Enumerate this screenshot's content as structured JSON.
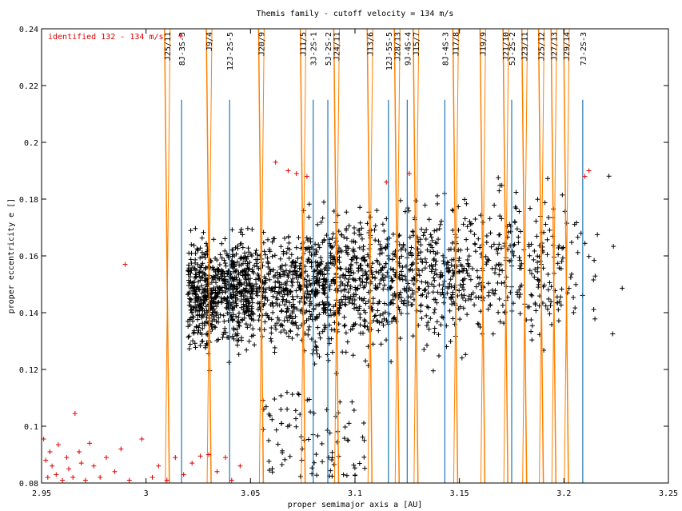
{
  "chart_data": {
    "type": "scatter",
    "title": "Themis family - cutoff velocity = 134 m/s",
    "xlabel": "proper semimajor axis a [AU]",
    "ylabel": "proper eccentricity e []",
    "xlim": [
      2.95,
      3.25
    ],
    "ylim": [
      0.08,
      0.24
    ],
    "xticks": [
      "2.95",
      "3",
      "3.05",
      "3.1",
      "3.15",
      "3.2",
      "3.25"
    ],
    "yticks": [
      "0.08",
      "0.1",
      "0.12",
      "0.14",
      "0.16",
      "0.18",
      "0.2",
      "0.22",
      "0.24"
    ],
    "grid": false,
    "legend": "top-left",
    "colors": {
      "members": "#000000",
      "identified": "#e00000",
      "jupiter_resonance": "#ff8000",
      "three_body_resonance": "#1f77b4"
    },
    "series": [
      {
        "name": "identified 132 - 134 m/s",
        "color": "#e00000"
      }
    ],
    "resonances": [
      {
        "label": "J25/11",
        "a": 3.01,
        "kind": "jupiter"
      },
      {
        "label": "8J-3S-3",
        "a": 3.017,
        "kind": "three-body"
      },
      {
        "label": "J9/4",
        "a": 3.03,
        "kind": "jupiter"
      },
      {
        "label": "12J-2S-5",
        "a": 3.04,
        "kind": "three-body"
      },
      {
        "label": "J20/9",
        "a": 3.055,
        "kind": "jupiter"
      },
      {
        "label": "J11/5",
        "a": 3.075,
        "kind": "jupiter"
      },
      {
        "label": "3J-2S-1",
        "a": 3.08,
        "kind": "three-body"
      },
      {
        "label": "5J-2S-2",
        "a": 3.087,
        "kind": "three-body"
      },
      {
        "label": "J24/11",
        "a": 3.091,
        "kind": "jupiter"
      },
      {
        "label": "J13/6",
        "a": 3.107,
        "kind": "jupiter"
      },
      {
        "label": "12J-5S-5",
        "a": 3.116,
        "kind": "three-body"
      },
      {
        "label": "J28/13",
        "a": 3.12,
        "kind": "jupiter"
      },
      {
        "label": "9J-4S-4",
        "a": 3.125,
        "kind": "three-body"
      },
      {
        "label": "J15/7",
        "a": 3.129,
        "kind": "jupiter"
      },
      {
        "label": "8J-4S-3",
        "a": 3.143,
        "kind": "three-body"
      },
      {
        "label": "J17/8",
        "a": 3.148,
        "kind": "jupiter"
      },
      {
        "label": "J19/9",
        "a": 3.161,
        "kind": "jupiter"
      },
      {
        "label": "J21/10",
        "a": 3.172,
        "kind": "jupiter"
      },
      {
        "label": "5J-2S-2",
        "a": 3.175,
        "kind": "three-body"
      },
      {
        "label": "J23/11",
        "a": 3.181,
        "kind": "jupiter"
      },
      {
        "label": "J25/12",
        "a": 3.189,
        "kind": "jupiter"
      },
      {
        "label": "J27/13",
        "a": 3.195,
        "kind": "jupiter"
      },
      {
        "label": "J29/14",
        "a": 3.201,
        "kind": "jupiter"
      },
      {
        "label": "7J-2S-3",
        "a": 3.209,
        "kind": "three-body"
      }
    ],
    "identified_points": [
      [
        2.951,
        0.0955
      ],
      [
        2.952,
        0.088
      ],
      [
        2.953,
        0.082
      ],
      [
        2.954,
        0.091
      ],
      [
        2.955,
        0.086
      ],
      [
        2.957,
        0.083
      ],
      [
        2.958,
        0.0935
      ],
      [
        2.96,
        0.081
      ],
      [
        2.962,
        0.089
      ],
      [
        2.963,
        0.085
      ],
      [
        2.965,
        0.082
      ],
      [
        2.966,
        0.1045
      ],
      [
        2.968,
        0.091
      ],
      [
        2.969,
        0.087
      ],
      [
        2.971,
        0.081
      ],
      [
        2.973,
        0.094
      ],
      [
        2.975,
        0.086
      ],
      [
        2.978,
        0.082
      ],
      [
        2.981,
        0.089
      ],
      [
        2.985,
        0.084
      ],
      [
        2.988,
        0.092
      ],
      [
        2.992,
        0.081
      ],
      [
        2.99,
        0.157
      ],
      [
        2.998,
        0.0955
      ],
      [
        3.003,
        0.082
      ],
      [
        3.006,
        0.086
      ],
      [
        3.01,
        0.081
      ],
      [
        3.014,
        0.089
      ],
      [
        3.018,
        0.083
      ],
      [
        3.022,
        0.087
      ],
      [
        3.026,
        0.0895
      ],
      [
        3.03,
        0.09
      ],
      [
        3.034,
        0.084
      ],
      [
        3.038,
        0.089
      ],
      [
        3.041,
        0.081
      ],
      [
        3.045,
        0.086
      ],
      [
        3.062,
        0.193
      ],
      [
        3.068,
        0.19
      ],
      [
        3.072,
        0.189
      ],
      [
        3.077,
        0.188
      ],
      [
        3.115,
        0.186
      ],
      [
        3.126,
        0.189
      ],
      [
        3.21,
        0.188
      ],
      [
        3.212,
        0.19
      ]
    ]
  }
}
